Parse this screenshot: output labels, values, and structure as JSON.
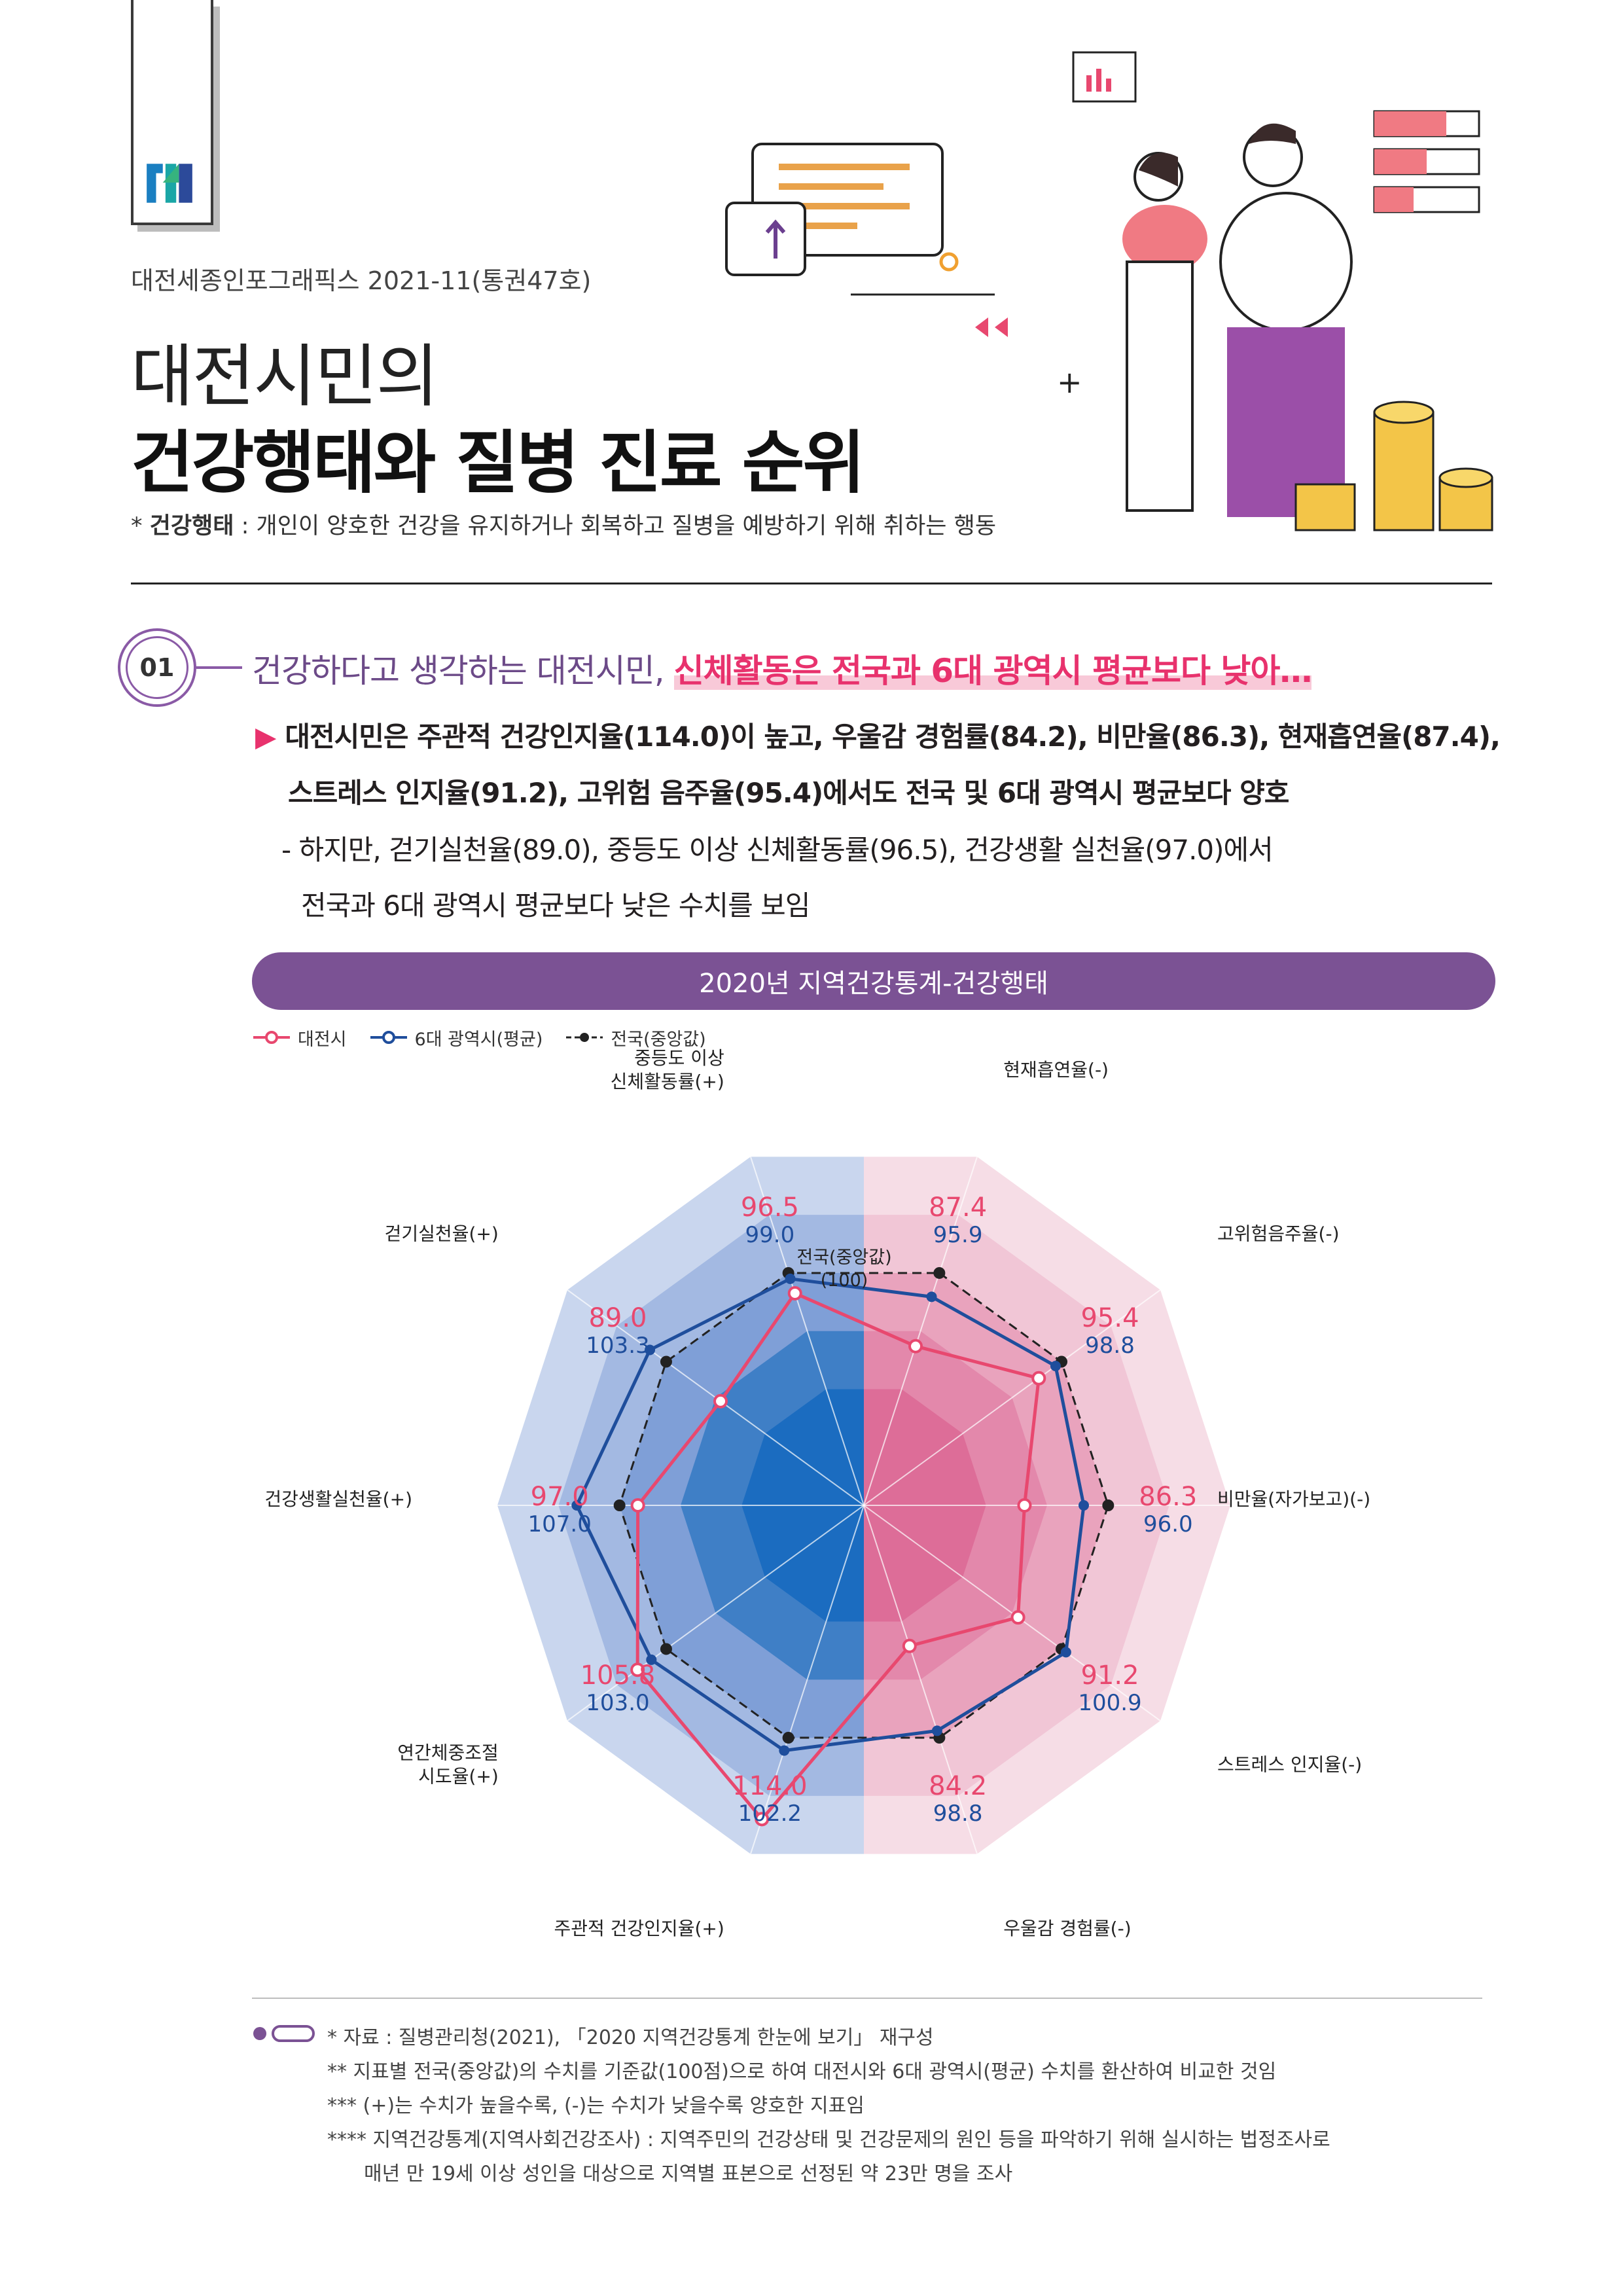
{
  "header": {
    "series": "대전세종인포그래픽스 2021-11(통권47호)",
    "title_line1": "대전시민의",
    "title_line2": "건강행태와 질병 진료 순위",
    "footnote_term": "건강행태",
    "footnote_prefix": "* ",
    "footnote_body": " : 개인이 양호한 건강을 유지하거나 회복하고 질병을 예방하기 위해 취하는 행동"
  },
  "section": {
    "number": "01",
    "headline_plain": "건강하다고 생각하는 대전시민, ",
    "headline_highlight": "신체활동은 전국과 6대 광역시 평균보다 낮아…",
    "bullet1": "대전시민은 주관적 건강인지율(114.0)이 높고, 우울감 경험률(84.2), 비만율(86.3), 현재흡연율(87.4),",
    "bullet1_marker": "▶",
    "bullet2": "스트레스 인지율(91.2), 고위험 음주율(95.4)에서도 전국 및 6대 광역시 평균보다 양호",
    "bullet3": "- 하지만, 걷기실천율(89.0), 중등도 이상 신체활동률(96.5), 건강생활 실천율(97.0)에서",
    "bullet4": "전국과 6대 광역시 평균보다 낮은 수치를 보임"
  },
  "banner": "2020년 지역건강통계-건강행태",
  "legend": {
    "daejeon": "대전시",
    "metro": "6대 광역시(평균)",
    "national": "전국(중앙값)"
  },
  "center_label_line1": "전국(중앙값)",
  "center_label_line2": "(100)",
  "colors": {
    "daejeon": "#e8486f",
    "metro": "#1f4e9c",
    "national": "#222222",
    "purple": "#7b5294",
    "left_bg": "#c7d4ec",
    "right_bg": "#f5dbe5"
  },
  "chart_data": {
    "type": "radar",
    "baseline": 100,
    "categories": [
      "현재흡연율(-)",
      "고위험음주율(-)",
      "비만율(자가보고)(-)",
      "스트레스 인지율(-)",
      "우울감 경험률(-)",
      "주관적 건강인지율(+)",
      "연간체중조절 시도율(+)",
      "건강생활실천율(+)",
      "걷기실천율(+)",
      "중등도 이상 신체활동률(+)"
    ],
    "series": [
      {
        "name": "대전시",
        "values": [
          87.4,
          95.4,
          86.3,
          91.2,
          84.2,
          114.0,
          105.8,
          97.0,
          89.0,
          96.5
        ]
      },
      {
        "name": "6대 광역시(평균)",
        "values": [
          95.9,
          98.8,
          96.0,
          100.9,
          98.8,
          102.2,
          103.0,
          107.0,
          103.3,
          99.0
        ]
      },
      {
        "name": "전국(중앙값)",
        "values": [
          100,
          100,
          100,
          100,
          100,
          100,
          100,
          100,
          100,
          100
        ]
      }
    ]
  },
  "axis_labels": [
    {
      "line1": "현재흡연율(-)",
      "line2": ""
    },
    {
      "line1": "고위험음주율(-)",
      "line2": ""
    },
    {
      "line1": "비만율(자가보고)(-)",
      "line2": ""
    },
    {
      "line1": "스트레스 인지율(-)",
      "line2": ""
    },
    {
      "line1": "우울감 경험률(-)",
      "line2": ""
    },
    {
      "line1": "주관적 건강인지율(+)",
      "line2": ""
    },
    {
      "line1": "연간체중조절",
      "line2": "시도율(+)"
    },
    {
      "line1": "건강생활실천율(+)",
      "line2": ""
    },
    {
      "line1": "걷기실천율(+)",
      "line2": ""
    },
    {
      "line1": "중등도 이상",
      "line2": "신체활동률(+)"
    }
  ],
  "footnotes": {
    "f1": "* 자료 : 질병관리청(2021), 「2020 지역건강통계 한눈에 보기」 재구성",
    "f2": "** 지표별 전국(중앙값)의 수치를 기준값(100점)으로 하여 대전시와 6대 광역시(평균) 수치를 환산하여 비교한 것임",
    "f3": "*** (+)는 수치가 높을수록, (-)는 수치가 낮을수록 양호한 지표임",
    "f4": "**** 지역건강통계(지역사회건강조사) : 지역주민의 건강상태 및 건강문제의 원인 등을 파악하기 위해 실시하는 법정조사로",
    "f5": "매년 만 19세 이상 성인을 대상으로 지역별 표본으로 선정된 약 23만 명을 조사"
  }
}
